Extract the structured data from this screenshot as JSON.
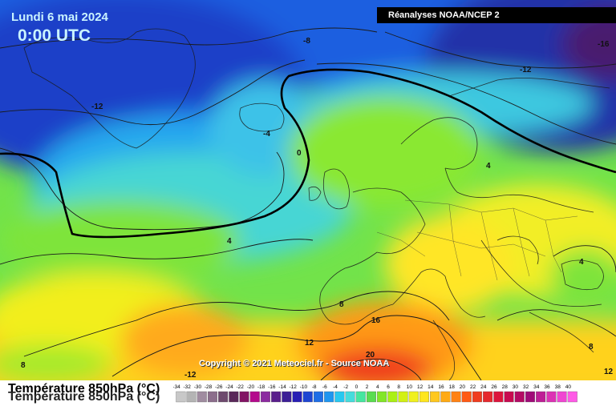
{
  "header": {
    "date": "Lundi 6 mai 2024",
    "time": "0:00 UTC",
    "source": "Réanalyses NOAA/NCEP 2"
  },
  "footer": {
    "title": "Température 850hPa (°C)",
    "copyright": "Copyright © 2021 Meteociel.fr - Source NOAA"
  },
  "contour_labels": [
    "-8",
    "-12",
    "-12",
    "-16",
    "-4",
    "0",
    "4",
    "4",
    "4",
    "8",
    "12",
    "16",
    "20",
    "8",
    "-12",
    "8",
    "12"
  ],
  "legend": {
    "values": [
      "-34",
      "-32",
      "-30",
      "-28",
      "-26",
      "-24",
      "-22",
      "-20",
      "-18",
      "-16",
      "-14",
      "-12",
      "-10",
      "-8",
      "-6",
      "-4",
      "-2",
      "0",
      "2",
      "4",
      "6",
      "8",
      "10",
      "12",
      "14",
      "16",
      "18",
      "20",
      "22",
      "24",
      "26",
      "28",
      "30",
      "32",
      "34",
      "36",
      "38",
      "40"
    ],
    "colors": [
      "#c8c8c8",
      "#b4b4b4",
      "#a08ca0",
      "#8c6e8c",
      "#6e4a6e",
      "#5a285a",
      "#821464",
      "#b40a8c",
      "#8c2aa0",
      "#5a1e8c",
      "#3c1e96",
      "#281eb4",
      "#1e46d2",
      "#1e6ee6",
      "#1e96f0",
      "#28c8f0",
      "#46dcdc",
      "#46e6a0",
      "#5adc50",
      "#82e628",
      "#aaf014",
      "#d2f014",
      "#f0f01e",
      "#ffe61e",
      "#ffc81e",
      "#ffaa14",
      "#ff8214",
      "#ff5a14",
      "#f03c1e",
      "#e6282d",
      "#dc143c",
      "#c80a50",
      "#b40a64",
      "#a00a78",
      "#be1e96",
      "#dc32b4",
      "#f046d2",
      "#ff5ae6"
    ]
  }
}
